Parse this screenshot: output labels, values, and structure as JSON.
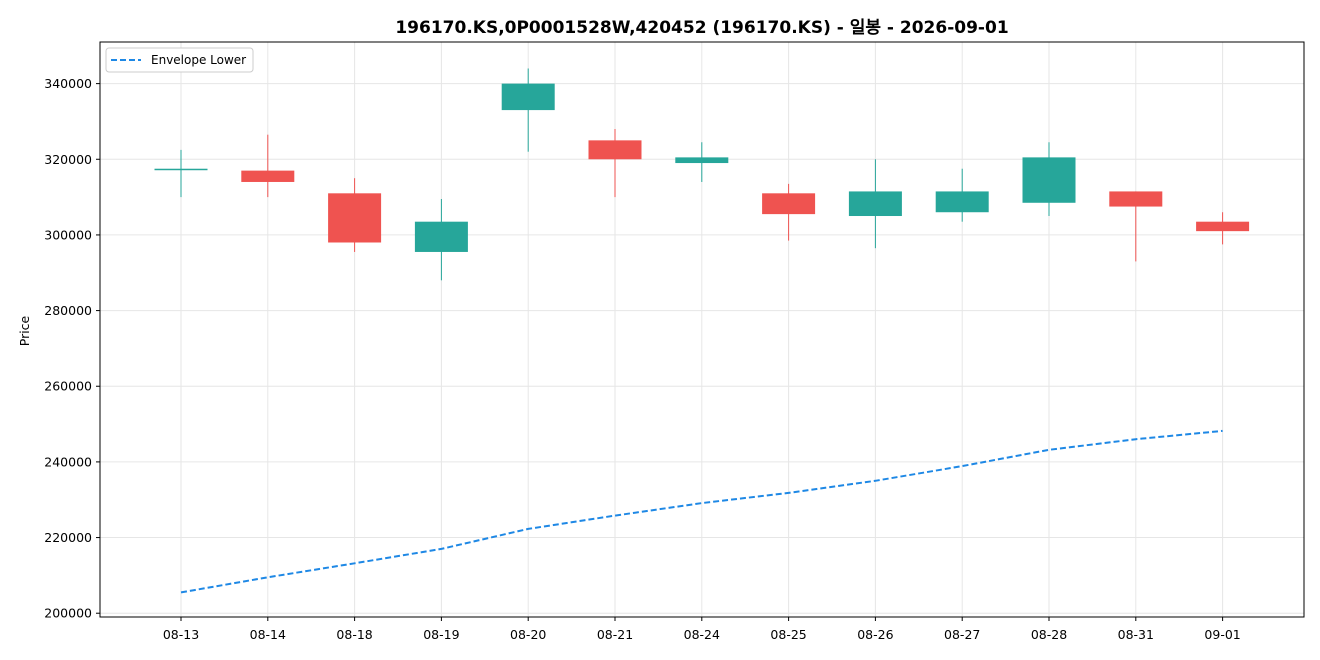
{
  "chart_data": {
    "type": "candlestick",
    "title": "196170.KS,0P0001528W,420452 (196170.KS) - 일봉 - 2026-09-01",
    "xlabel": "",
    "ylabel": "Price",
    "ylim": [
      199000,
      351000
    ],
    "yticks": [
      200000,
      220000,
      240000,
      260000,
      280000,
      300000,
      320000,
      340000
    ],
    "ytick_labels": [
      "200000",
      "220000",
      "240000",
      "260000",
      "280000",
      "300000",
      "320000",
      "340000"
    ],
    "grid": true,
    "legend_position": "top-left",
    "colors": {
      "up": "#26a69a",
      "down": "#ef5350",
      "envelope": "#1e88e5",
      "grid": "#e6e6e6"
    },
    "categories": [
      "08-13",
      "08-14",
      "08-18",
      "08-19",
      "08-20",
      "08-21",
      "08-24",
      "08-25",
      "08-26",
      "08-27",
      "08-28",
      "08-31",
      "09-01"
    ],
    "ohlc": [
      {
        "open": 317500,
        "high": 322500,
        "low": 310000,
        "close": 317500
      },
      {
        "open": 317000,
        "high": 326500,
        "low": 310000,
        "close": 314000
      },
      {
        "open": 311000,
        "high": 315000,
        "low": 295500,
        "close": 298000
      },
      {
        "open": 295500,
        "high": 309500,
        "low": 288000,
        "close": 303500
      },
      {
        "open": 333000,
        "high": 344000,
        "low": 322000,
        "close": 340000
      },
      {
        "open": 325000,
        "high": 328000,
        "low": 310000,
        "close": 320000
      },
      {
        "open": 319000,
        "high": 324500,
        "low": 314000,
        "close": 320500
      },
      {
        "open": 311000,
        "high": 313500,
        "low": 298500,
        "close": 305500
      },
      {
        "open": 305000,
        "high": 320000,
        "low": 296500,
        "close": 311500
      },
      {
        "open": 306000,
        "high": 317500,
        "low": 303500,
        "close": 311500
      },
      {
        "open": 308500,
        "high": 324500,
        "low": 305000,
        "close": 320500
      },
      {
        "open": 311500,
        "high": 311500,
        "low": 293000,
        "close": 307500
      },
      {
        "open": 303500,
        "high": 306000,
        "low": 297500,
        "close": 301000
      }
    ],
    "series": [
      {
        "name": "Envelope Lower",
        "type": "line",
        "style": "dashed",
        "values": [
          205500,
          209500,
          213200,
          217000,
          222300,
          225800,
          229100,
          231800,
          235000,
          238900,
          243200,
          246000,
          248200
        ]
      }
    ]
  }
}
